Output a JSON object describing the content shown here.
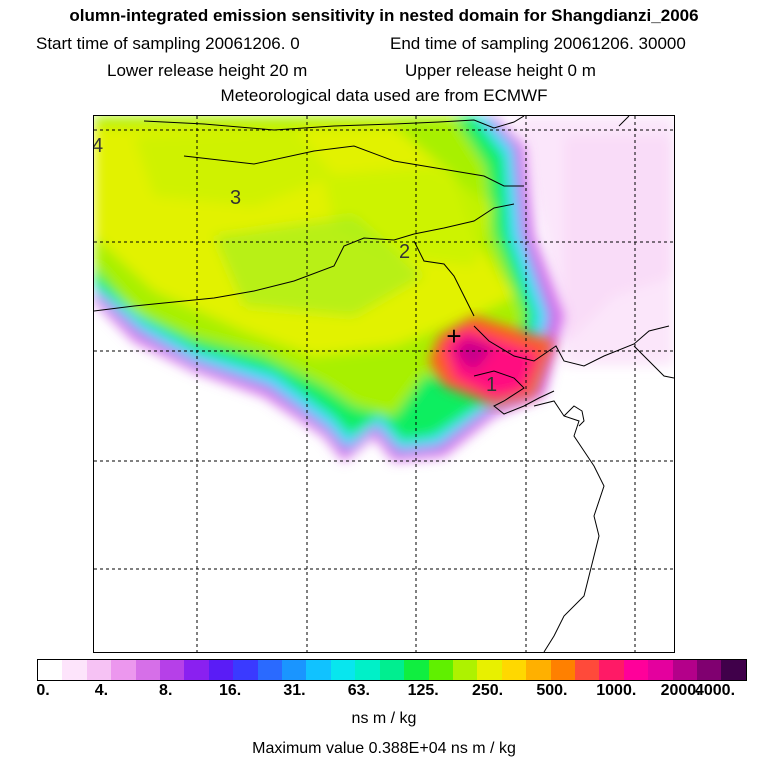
{
  "title": "olumn-integrated emission sensitivity in nested domain for Shangdianzi_2006",
  "sampling": {
    "start": "Start time of sampling 20061206.     0",
    "end": "End time of sampling 20061206. 30000"
  },
  "release": {
    "lower": "Lower release height   20 m",
    "upper": "Upper release height    0 m"
  },
  "met": "Meteorological data used are from ECMWF",
  "map": {
    "contour_labels": [
      "4",
      "3",
      "2",
      "1"
    ],
    "station_marker": "+"
  },
  "legend": {
    "colors": [
      "#ffffff",
      "#fde4fb",
      "#f6c2f4",
      "#ec97ee",
      "#d66fe8",
      "#b640e8",
      "#8a20f0",
      "#5a1cf6",
      "#3a3aff",
      "#2a6aff",
      "#1a95ff",
      "#11c2ff",
      "#08e6ee",
      "#00f0c8",
      "#00ee90",
      "#10ee40",
      "#60f000",
      "#aef200",
      "#e8f000",
      "#ffd800",
      "#ffb000",
      "#ff8000",
      "#ff4a3a",
      "#ff1a66",
      "#ff009a",
      "#e4009e",
      "#b4008a",
      "#800070",
      "#40004a"
    ],
    "ticks": [
      "0.",
      "4.",
      "8.",
      "16.",
      "31.",
      "63.",
      "125.",
      "250.",
      "500.",
      "1000.",
      "2000.",
      "4000."
    ],
    "unit": "ns m / kg"
  },
  "max_value": "Maximum value  0.388E+04 ns m / kg"
}
